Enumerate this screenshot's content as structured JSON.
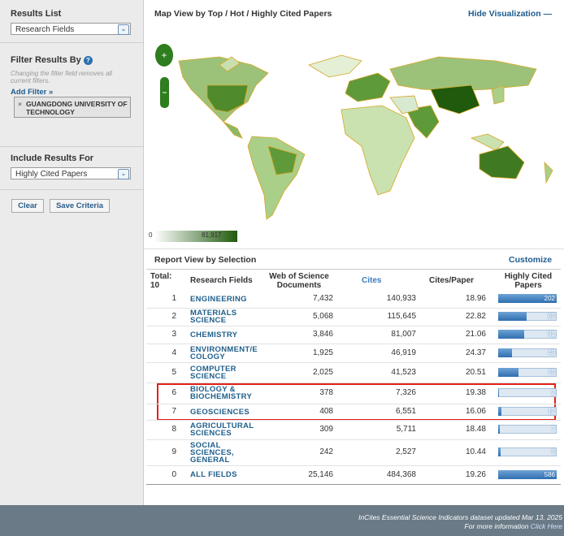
{
  "sidebar": {
    "results_list_label": "Results List",
    "results_list_value": "Research Fields",
    "filter_label": "Filter Results By",
    "filter_hint": "Changing the filter field removes all current filters.",
    "add_filter": "Add Filter »",
    "filter_chip": "GUANGDONG UNIVERSITY OF TECHNOLOGY",
    "include_label": "Include Results For",
    "include_value": "Highly Cited Papers",
    "clear": "Clear",
    "save": "Save Criteria"
  },
  "map": {
    "title": "Map View by Top / Hot / Highly Cited Papers",
    "hide": "Hide Visualization",
    "legend_min": "0",
    "legend_max": "81,917"
  },
  "report": {
    "title": "Report View by Selection",
    "customize": "Customize",
    "total_label": "Total:",
    "total": "10",
    "headers": [
      "Research Fields",
      "Web of Science Documents",
      "Cites",
      "Cites/Paper",
      "Highly Cited Papers"
    ],
    "rows": [
      [
        "1",
        "ENGINEERING",
        "7,432",
        "140,933",
        "18.96",
        202
      ],
      [
        "2",
        "MATERIALS SCIENCE",
        "5,068",
        "115,645",
        "22.82",
        99
      ],
      [
        "3",
        "CHEMISTRY",
        "3,846",
        "81,007",
        "21.06",
        91
      ],
      [
        "4",
        "ENVIRONMENT/E COLOGY",
        "1,925",
        "46,919",
        "24.37",
        49
      ],
      [
        "5",
        "COMPUTER SCIENCE",
        "2,025",
        "41,523",
        "20.51",
        70
      ],
      [
        "6",
        "BIOLOGY & BIOCHEMISTRY",
        "378",
        "7,326",
        "19.38",
        2
      ],
      [
        "7",
        "GEOSCIENCES",
        "408",
        "6,551",
        "16.06",
        12
      ],
      [
        "8",
        "AGRICULTURAL SCIENCES",
        "309",
        "5,711",
        "18.48",
        7
      ],
      [
        "9",
        "SOCIAL SCIENCES, GENERAL",
        "242",
        "2,527",
        "10.44",
        9
      ],
      [
        "0",
        "ALL FIELDS",
        "25,146",
        "484,368",
        "19.26",
        586
      ]
    ]
  },
  "footer": {
    "line1": "InCites Essential Science Indicators dataset updated Mar 13, 2025",
    "line2_prefix": "For more information",
    "line2_link": "Click Here"
  }
}
